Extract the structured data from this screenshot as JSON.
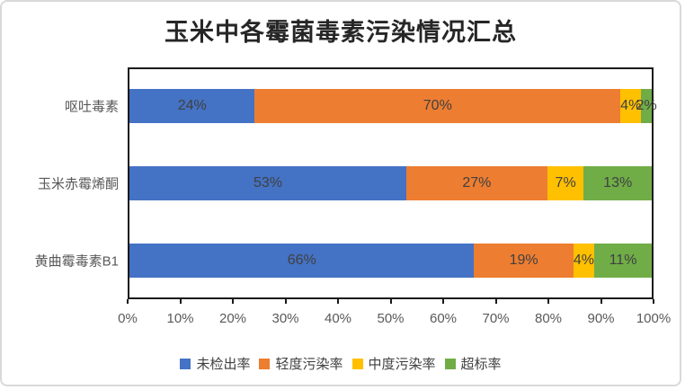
{
  "chart_data": {
    "type": "bar",
    "orientation": "horizontal-stacked",
    "title": "玉米中各霉菌毒素污染情况汇总",
    "categories": [
      "呕吐毒素",
      "玉米赤霉烯酮",
      "黄曲霉毒素B1"
    ],
    "series": [
      {
        "name": "未检出率",
        "color": "#4472C4",
        "values": [
          24,
          53,
          66
        ]
      },
      {
        "name": "轻度污染率",
        "color": "#ED7D31",
        "values": [
          70,
          27,
          19
        ]
      },
      {
        "name": "中度污染率",
        "color": "#FFC000",
        "values": [
          4,
          7,
          4
        ]
      },
      {
        "name": "超标率",
        "color": "#70AD47",
        "values": [
          2,
          13,
          11
        ]
      }
    ],
    "data_label_format": "percent",
    "x_ticks": [
      "0%",
      "10%",
      "20%",
      "30%",
      "40%",
      "50%",
      "60%",
      "70%",
      "80%",
      "90%",
      "100%"
    ],
    "xlim": [
      0,
      100
    ],
    "grid": false,
    "legend_position": "bottom",
    "plot_border_color": "#1a1a1a",
    "axis_text_color": "#595959",
    "data_label_color": "#404040"
  }
}
